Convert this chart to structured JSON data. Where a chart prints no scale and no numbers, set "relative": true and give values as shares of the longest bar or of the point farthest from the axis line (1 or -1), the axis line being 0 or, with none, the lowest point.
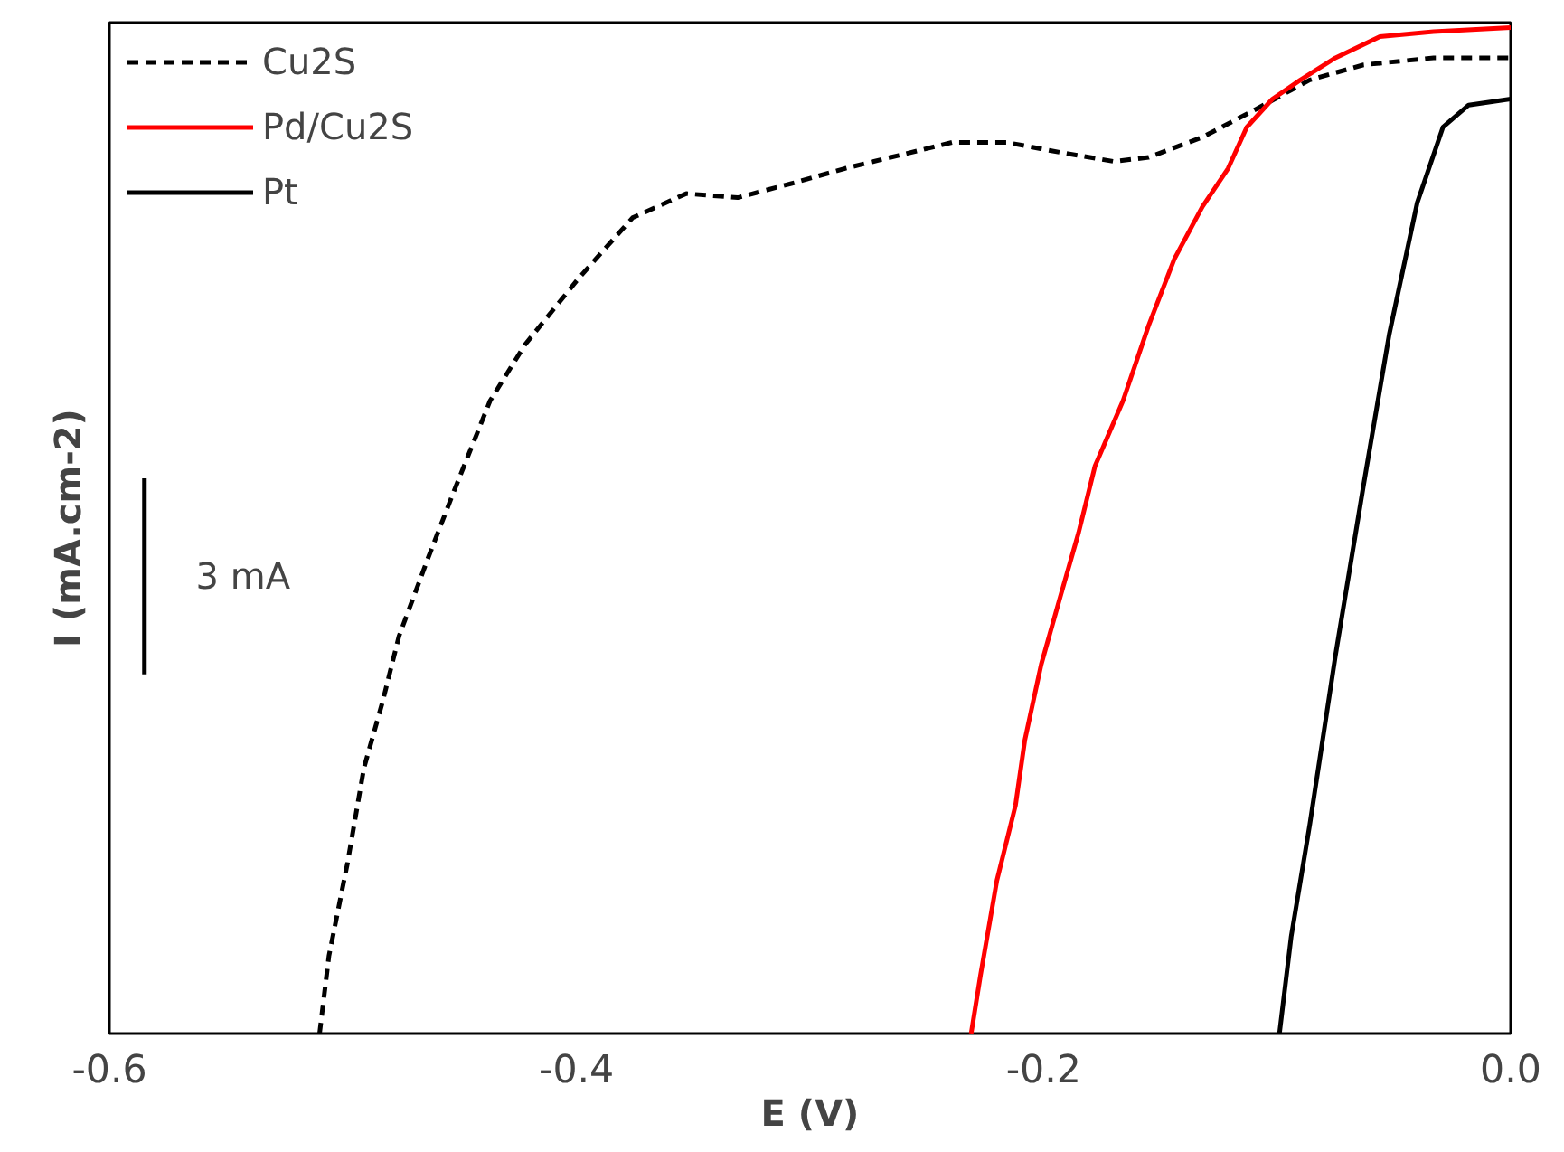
{
  "chart_data": {
    "type": "line",
    "relative": true,
    "xlabel": "E (V)",
    "ylabel": "I (mA.cm-2)",
    "xlim": [
      -0.6,
      0.0
    ],
    "xticks": [
      -0.6,
      -0.4,
      -0.2,
      {
        "value": 0.0,
        "label": "0.0"
      }
    ],
    "tick_labels": "x",
    "grid": false,
    "legend": "top left",
    "marker": "none",
    "annotations": [
      "3 mA"
    ],
    "series": [
      {
        "name": "Cu2S",
        "color": "#000000",
        "line_style": "dashed",
        "x": [
          -0.51,
          -0.506,
          -0.498,
          -0.491,
          -0.483,
          -0.476,
          -0.464,
          -0.453,
          -0.437,
          -0.422,
          -0.399,
          -0.376,
          -0.353,
          -0.331,
          -0.308,
          -0.285,
          -0.262,
          -0.239,
          -0.216,
          -0.193,
          -0.17,
          -0.155,
          -0.132,
          -0.109,
          -0.086,
          -0.063,
          -0.033,
          0.0
        ],
        "values": [
          0,
          0.077,
          0.17,
          0.264,
          0.33,
          0.395,
          0.47,
          0.536,
          0.629,
          0.685,
          0.751,
          0.811,
          0.835,
          0.831,
          0.845,
          0.86,
          0.873,
          0.886,
          0.886,
          0.876,
          0.867,
          0.871,
          0.891,
          0.919,
          0.948,
          0.963,
          0.97,
          0.97
        ]
      },
      {
        "name": "Pd/Cu2S",
        "color": "#ff0000",
        "line_style": "solid",
        "x": [
          -0.231,
          -0.227,
          -0.22,
          -0.212,
          -0.208,
          -0.201,
          -0.193,
          -0.185,
          -0.178,
          -0.166,
          -0.155,
          -0.144,
          -0.132,
          -0.121,
          -0.113,
          -0.102,
          -0.09,
          -0.075,
          -0.056,
          -0.033,
          0.0
        ],
        "values": [
          0,
          0.058,
          0.152,
          0.227,
          0.292,
          0.367,
          0.433,
          0.498,
          0.564,
          0.629,
          0.704,
          0.77,
          0.822,
          0.86,
          0.901,
          0.929,
          0.948,
          0.97,
          0.991,
          0.996,
          1.0
        ]
      },
      {
        "color": "#000000",
        "line_style": "solid",
        "x": [
          -0.585,
          -0.585
        ],
        "values": [
          0.357,
          0.552
        ]
      },
      {
        "name": "Pt",
        "color": "#000000",
        "line_style": "solid",
        "x": [
          -0.099,
          -0.094,
          -0.086,
          -0.075,
          -0.063,
          -0.052,
          -0.04,
          -0.029,
          -0.018,
          0.0
        ],
        "values": [
          0,
          0.096,
          0.208,
          0.376,
          0.545,
          0.695,
          0.826,
          0.901,
          0.923,
          0.929
        ]
      }
    ]
  }
}
